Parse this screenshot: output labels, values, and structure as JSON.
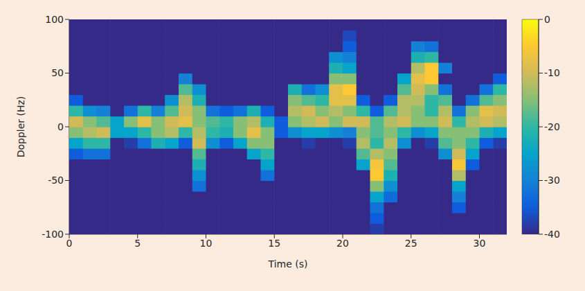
{
  "chart_data": {
    "type": "heatmap",
    "x_label": "Time (s)",
    "y_label": "Doppler (Hz)",
    "xlim": [
      0,
      32
    ],
    "xticks": [
      0,
      5,
      10,
      15,
      20,
      25,
      30
    ],
    "ylim": [
      -100,
      100
    ],
    "yticks": [
      -100,
      -50,
      0,
      50,
      100
    ],
    "x": [
      0.5,
      1.5,
      2.5,
      3.5,
      4.5,
      5.5,
      6.5,
      7.5,
      8.5,
      9.5,
      10.5,
      11.5,
      12.5,
      13.5,
      14.5,
      15.5,
      16.5,
      17.5,
      18.5,
      19.5,
      20.5,
      21.5,
      22.5,
      23.5,
      24.5,
      25.5,
      26.5,
      27.5,
      28.5,
      29.5,
      30.5,
      31.5
    ],
    "y": [
      -95,
      -85,
      -75,
      -65,
      -55,
      -45,
      -35,
      -25,
      -15,
      -5,
      5,
      15,
      25,
      35,
      45,
      55,
      65,
      75,
      85,
      95
    ],
    "cells": [
      [
        -40,
        -40,
        -40,
        -40,
        -40,
        -40,
        -40,
        -40,
        -40,
        -40,
        -40,
        -40,
        -40,
        -40,
        -40,
        -40,
        -40,
        -40,
        -40,
        -40,
        -40,
        -40,
        -38,
        -40,
        -40,
        -40,
        -40,
        -40,
        -40,
        -40,
        -40,
        -40
      ],
      [
        -40,
        -40,
        -40,
        -40,
        -40,
        -40,
        -40,
        -40,
        -40,
        -40,
        -40,
        -40,
        -40,
        -40,
        -40,
        -40,
        -40,
        -40,
        -40,
        -40,
        -40,
        -40,
        -35,
        -40,
        -40,
        -40,
        -40,
        -40,
        -40,
        -40,
        -40,
        -40
      ],
      [
        -40,
        -40,
        -40,
        -40,
        -40,
        -40,
        -40,
        -40,
        -40,
        -40,
        -40,
        -40,
        -40,
        -40,
        -40,
        -40,
        -40,
        -40,
        -40,
        -40,
        -40,
        -40,
        -32,
        -40,
        -40,
        -40,
        -40,
        -40,
        -35,
        -40,
        -40,
        -40
      ],
      [
        -40,
        -40,
        -40,
        -40,
        -40,
        -40,
        -40,
        -40,
        -40,
        -40,
        -40,
        -40,
        -40,
        -40,
        -40,
        -40,
        -40,
        -40,
        -40,
        -40,
        -40,
        -40,
        -25,
        -33,
        -40,
        -40,
        -40,
        -40,
        -30,
        -40,
        -40,
        -40
      ],
      [
        -40,
        -40,
        -40,
        -40,
        -40,
        -40,
        -40,
        -40,
        -40,
        -32,
        -40,
        -40,
        -40,
        -40,
        -40,
        -40,
        -40,
        -40,
        -40,
        -40,
        -40,
        -40,
        -15,
        -28,
        -40,
        -40,
        -40,
        -40,
        -25,
        -40,
        -40,
        -40
      ],
      [
        -40,
        -40,
        -40,
        -40,
        -40,
        -40,
        -40,
        -40,
        -40,
        -28,
        -40,
        -40,
        -40,
        -40,
        -32,
        -40,
        -40,
        -40,
        -40,
        -40,
        -40,
        -40,
        -5,
        -22,
        -40,
        -40,
        -40,
        -40,
        -12,
        -40,
        -40,
        -40
      ],
      [
        -40,
        -40,
        -40,
        -40,
        -40,
        -40,
        -40,
        -40,
        -40,
        -22,
        -40,
        -40,
        -40,
        -40,
        -25,
        -40,
        -40,
        -40,
        -40,
        -40,
        -40,
        -25,
        -6,
        -18,
        -40,
        -40,
        -40,
        -40,
        -6,
        -35,
        -40,
        -40
      ],
      [
        -35,
        -32,
        -32,
        -40,
        -40,
        -40,
        -40,
        -40,
        -40,
        -18,
        -40,
        -40,
        -40,
        -25,
        -20,
        -40,
        -40,
        -40,
        -40,
        -40,
        -40,
        -18,
        -12,
        -15,
        -40,
        -40,
        -40,
        -28,
        -10,
        -25,
        -40,
        -40
      ],
      [
        -25,
        -20,
        -20,
        -40,
        -38,
        -32,
        -22,
        -25,
        -35,
        -10,
        -28,
        -35,
        -25,
        -15,
        -15,
        -40,
        -40,
        -38,
        -40,
        -40,
        -38,
        -12,
        -20,
        -12,
        -28,
        -40,
        -38,
        -18,
        -15,
        -20,
        -35,
        -38
      ],
      [
        -15,
        -12,
        -10,
        -25,
        -25,
        -20,
        -15,
        -12,
        -20,
        -12,
        -20,
        -22,
        -15,
        -8,
        -15,
        -35,
        -28,
        -25,
        -25,
        -28,
        -30,
        -15,
        -18,
        -15,
        -20,
        -28,
        -25,
        -15,
        -15,
        -15,
        -22,
        -25
      ],
      [
        -10,
        -15,
        -18,
        -25,
        -15,
        -8,
        -15,
        -10,
        -8,
        -15,
        -18,
        -20,
        -15,
        -12,
        -22,
        -35,
        -15,
        -12,
        -10,
        -15,
        -10,
        -10,
        -18,
        -12,
        -10,
        -15,
        -15,
        -10,
        -20,
        -12,
        -10,
        -12
      ],
      [
        -20,
        -28,
        -30,
        -40,
        -32,
        -20,
        -30,
        -18,
        -10,
        -15,
        -32,
        -35,
        -32,
        -22,
        -35,
        -40,
        -12,
        -10,
        -15,
        -12,
        -15,
        -20,
        -35,
        -18,
        -12,
        -15,
        -20,
        -12,
        -32,
        -15,
        -8,
        -10
      ],
      [
        -35,
        -40,
        -40,
        -40,
        -40,
        -40,
        -40,
        -28,
        -12,
        -22,
        -40,
        -40,
        -40,
        -40,
        -40,
        -40,
        -15,
        -18,
        -20,
        -8,
        -8,
        -35,
        -40,
        -35,
        -12,
        -12,
        -20,
        -18,
        -40,
        -32,
        -18,
        -15
      ],
      [
        -40,
        -40,
        -40,
        -40,
        -40,
        -40,
        -40,
        -40,
        -18,
        -28,
        -40,
        -40,
        -40,
        -40,
        -40,
        -40,
        -22,
        -32,
        -28,
        -8,
        -5,
        -40,
        -40,
        -40,
        -18,
        -10,
        -15,
        -32,
        -40,
        -40,
        -32,
        -20
      ],
      [
        -40,
        -40,
        -40,
        -40,
        -40,
        -40,
        -40,
        -40,
        -30,
        -40,
        -40,
        -40,
        -40,
        -40,
        -40,
        -40,
        -40,
        -40,
        -40,
        -15,
        -15,
        -40,
        -40,
        -40,
        -25,
        -8,
        -5,
        -40,
        -40,
        -40,
        -40,
        -35
      ],
      [
        -40,
        -40,
        -40,
        -40,
        -40,
        -40,
        -40,
        -40,
        -40,
        -40,
        -40,
        -40,
        -40,
        -40,
        -40,
        -40,
        -40,
        -40,
        -40,
        -22,
        -25,
        -40,
        -40,
        -40,
        -40,
        -12,
        -5,
        -30,
        -40,
        -40,
        -40,
        -40
      ],
      [
        -40,
        -40,
        -40,
        -40,
        -40,
        -40,
        -40,
        -40,
        -40,
        -40,
        -40,
        -40,
        -40,
        -40,
        -40,
        -40,
        -40,
        -40,
        -40,
        -28,
        -30,
        -40,
        -40,
        -40,
        -40,
        -22,
        -20,
        -40,
        -40,
        -40,
        -40,
        -40
      ],
      [
        -40,
        -40,
        -40,
        -40,
        -40,
        -40,
        -40,
        -40,
        -40,
        -40,
        -40,
        -40,
        -40,
        -40,
        -40,
        -40,
        -40,
        -40,
        -40,
        -40,
        -35,
        -40,
        -40,
        -40,
        -40,
        -30,
        -32,
        -40,
        -40,
        -40,
        -40,
        -40
      ],
      [
        -40,
        -40,
        -40,
        -40,
        -40,
        -40,
        -40,
        -40,
        -40,
        -40,
        -40,
        -40,
        -40,
        -40,
        -40,
        -40,
        -40,
        -40,
        -40,
        -40,
        -37,
        -40,
        -40,
        -40,
        -40,
        -40,
        -40,
        -40,
        -40,
        -40,
        -40,
        -40
      ],
      [
        -40,
        -40,
        -40,
        -40,
        -40,
        -40,
        -40,
        -40,
        -40,
        -40,
        -40,
        -40,
        -40,
        -40,
        -40,
        -40,
        -40,
        -40,
        -40,
        -40,
        -40,
        -40,
        -40,
        -40,
        -40,
        -40,
        -40,
        -40,
        -40,
        -40,
        -40,
        -40
      ]
    ],
    "colorbar_range": [
      -40,
      0
    ],
    "colorbar_ticks": [
      0,
      -10,
      -20,
      -30,
      -40
    ]
  }
}
